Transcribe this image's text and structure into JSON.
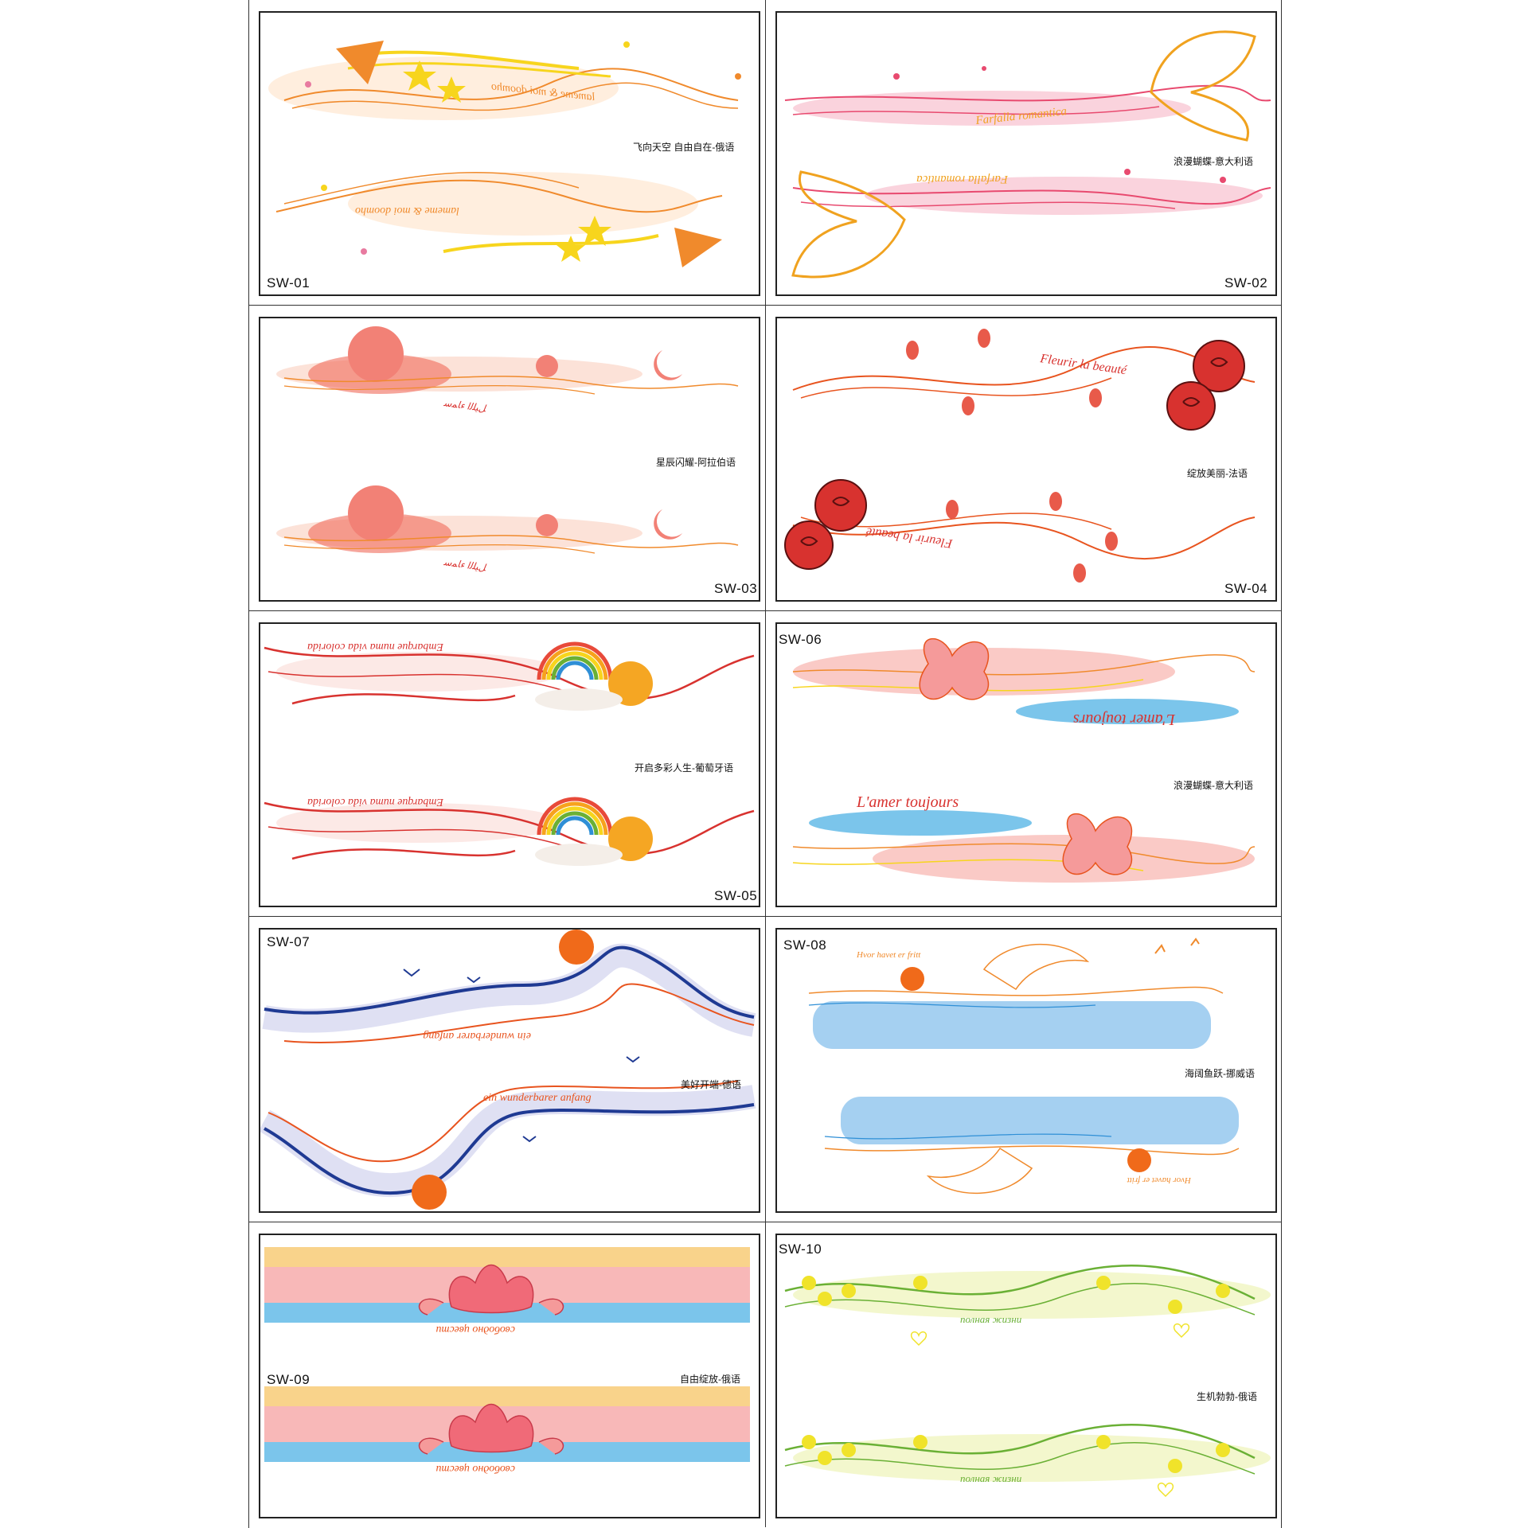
{
  "stickers": [
    {
      "code": "SW-01",
      "caption": "飞向天空 自由自在-俄语",
      "script_top": "lameme & moi doomho",
      "script_bottom": "lameme & moi doomho"
    },
    {
      "code": "SW-02",
      "caption": "浪漫蝴蝶-意大利语",
      "script_top": "Farfalla romantica",
      "script_bottom": "Farfalla romantica"
    },
    {
      "code": "SW-03",
      "caption": "星辰闪耀-阿拉伯语",
      "script_top": "",
      "script_bottom": ""
    },
    {
      "code": "SW-04",
      "caption": "绽放美丽-法语",
      "script_top": "Fleurir la beauté",
      "script_bottom": "Fleurir la beauté"
    },
    {
      "code": "SW-05",
      "caption": "开启多彩人生-葡萄牙语",
      "script_top": "Embarque numa vida colorida",
      "script_bottom": "Embarque numa vida colorida"
    },
    {
      "code": "SW-06",
      "caption": "浪漫蝴蝶-意大利语",
      "script_top": "L'amer toujours",
      "script_bottom": "L'amer toujours"
    },
    {
      "code": "SW-07",
      "caption": "美好开端-德语",
      "script_top": "ein wunderbarer anfang",
      "script_bottom": "ein wunderbarer anfang"
    },
    {
      "code": "SW-08",
      "caption": "海阔鱼跃-挪威语",
      "script_top": "Hvor havet er fritt",
      "script_bottom": "Hvor havet er fritt"
    },
    {
      "code": "SW-09",
      "caption": "自由绽放-俄语",
      "script_top": "свободно цвести",
      "script_bottom": "свободно цвести"
    },
    {
      "code": "SW-10",
      "caption": "生机勃勃-俄语",
      "script_top": "полная жизни",
      "script_bottom": "полная жизни"
    }
  ],
  "colors": {
    "border": "#222222",
    "orange": "#f08a2c",
    "yellow": "#f7d51d",
    "pink": "#e84a6f",
    "red": "#d8322f",
    "blue": "#2f8fd6",
    "navy": "#1f3a93",
    "green": "#6ab035",
    "lime": "#f0e32a"
  }
}
